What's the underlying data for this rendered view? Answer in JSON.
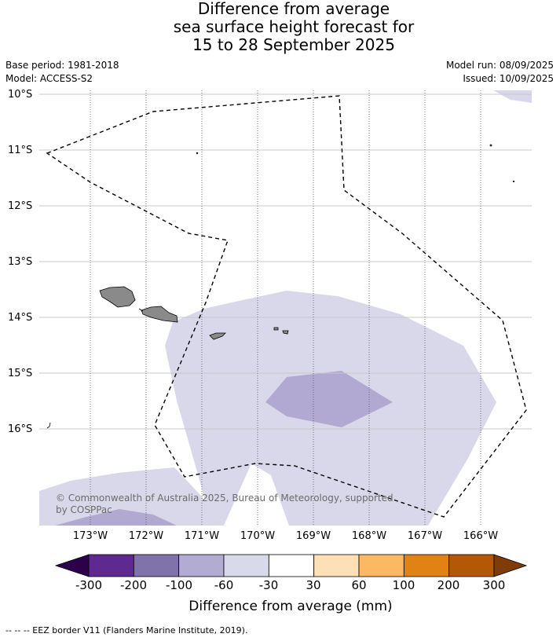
{
  "title": {
    "line1": "Difference from average",
    "line2": "sea surface height forecast for",
    "line3": "15 to 28 September 2025"
  },
  "meta": {
    "base_period": "Base period: 1981-2018",
    "model": "Model: ACCESS-S2",
    "model_run": "Model run: 08/09/2025",
    "issued": "Issued: 10/09/2025"
  },
  "map": {
    "lat_ticks": [
      "10°S",
      "11°S",
      "12°S",
      "13°S",
      "14°S",
      "15°S",
      "16°S"
    ],
    "lon_ticks": [
      "173°W",
      "172°W",
      "171°W",
      "170°W",
      "169°W",
      "168°W",
      "167°W",
      "166°W"
    ],
    "copyright": "© Commonwealth of Australia 2025, Bureau of Meteorology, supported by COSPPac",
    "colors": {
      "land": "#8a8a8a",
      "eez_border": "#000000",
      "band_-60_-30": "#d8d8ea",
      "band_-100_-60": "#b1a9d2"
    }
  },
  "colorbar": {
    "ticks": [
      "-300",
      "-200",
      "-100",
      "-60",
      "-30",
      "30",
      "60",
      "100",
      "200",
      "300"
    ],
    "colors": [
      "#2d004b",
      "#5e2990",
      "#8073ac",
      "#b2abd2",
      "#d8daeb",
      "#ffffff",
      "#fee0b6",
      "#fdb863",
      "#e08214",
      "#b35806",
      "#7f3b08"
    ],
    "label": "Difference from average (mm)"
  },
  "footer": "--  --  -- EEZ border V11 (Flanders Marine Institute, 2019)."
}
